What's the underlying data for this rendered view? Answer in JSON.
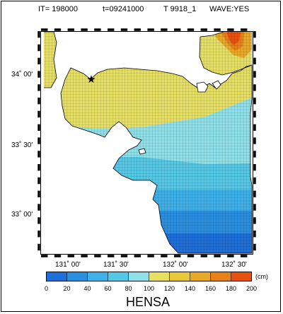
{
  "header": {
    "iteration": "IT= 198000",
    "time": "t=09241000",
    "run_id": "T 9918_1",
    "wave": "WAVE:YES"
  },
  "axes": {
    "lat_labels": [
      "34˚ 00'",
      "33˚ 30'",
      "33˚ 00'"
    ],
    "lon_labels": [
      "131˚ 00'",
      "131˚ 30'",
      "132˚ 00'",
      "132˚ 30'"
    ]
  },
  "marker": {
    "symbol": "★",
    "name": "station-star"
  },
  "colorbar": {
    "ticks": [
      "0",
      "20",
      "40",
      "60",
      "80",
      "100",
      "120",
      "140",
      "160",
      "180",
      "200"
    ],
    "unit": "(cm)",
    "colors": [
      "#1f6fd8",
      "#2a8fe0",
      "#3fb0e8",
      "#55c8e6",
      "#8fe0e8",
      "#e8e060",
      "#e8c838",
      "#e8a828",
      "#e88018",
      "#e85010"
    ],
    "title": "HENSA"
  }
}
